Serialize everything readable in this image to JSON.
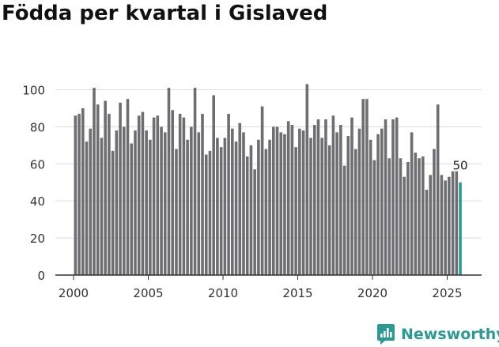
{
  "title": "Födda per kvartal i Gislaved",
  "brand": {
    "name": "Newsworthy",
    "icon": "newsworthy-logo-icon",
    "color": "#2a9a94"
  },
  "chart_data": {
    "type": "bar",
    "title": "Födda per kvartal i Gislaved",
    "xlabel": "",
    "ylabel": "",
    "ylim": [
      0,
      110
    ],
    "yticks": [
      0,
      20,
      40,
      60,
      80,
      100
    ],
    "xticks": [
      2000,
      2005,
      2010,
      2015,
      2020,
      2025
    ],
    "grid": true,
    "legend": "none",
    "bar_color": "#6e6d72",
    "highlight_color": "#2a9a94",
    "start_year": 2000,
    "last_value_label": "50",
    "series": [
      {
        "values": [
          86,
          87,
          90,
          72,
          79,
          101,
          92,
          74,
          94,
          87,
          67,
          78,
          93,
          80,
          95,
          71,
          78,
          86,
          88,
          78,
          73,
          85,
          86,
          80,
          77,
          101,
          89,
          68,
          87,
          85,
          73,
          80,
          101,
          77,
          87,
          65,
          67,
          97,
          74,
          69,
          74,
          87,
          79,
          72,
          82,
          77,
          64,
          70,
          57,
          73,
          91,
          68,
          73,
          80,
          80,
          77,
          76,
          83,
          81,
          69,
          79,
          78,
          103,
          74,
          81,
          84,
          74,
          84,
          70,
          86,
          77,
          81,
          59,
          75,
          85,
          68,
          79,
          95,
          95,
          73,
          62,
          76,
          79,
          84,
          63,
          84,
          85,
          63,
          53,
          61,
          77,
          66,
          63,
          64,
          46,
          54,
          68,
          92,
          54,
          51,
          53,
          56,
          56,
          50
        ]
      }
    ]
  }
}
